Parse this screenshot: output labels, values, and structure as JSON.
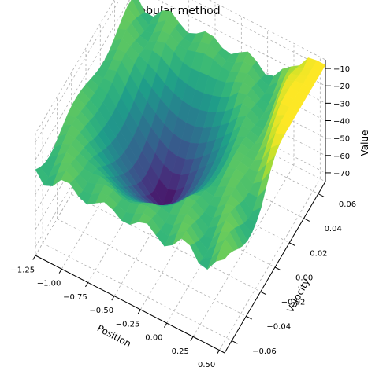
{
  "chart_data": {
    "type": "surface3d",
    "title": "Tabular method",
    "xlabel": "Position",
    "ylabel": "Velocity",
    "zlabel": "Value",
    "xlim": [
      -1.25,
      0.55
    ],
    "ylim": [
      -0.07,
      0.07
    ],
    "zlim": [
      -75,
      -5
    ],
    "x_ticks": [
      "−1.25",
      "−1.00",
      "−0.75",
      "−0.50",
      "−0.25",
      "0.00",
      "0.25",
      "0.50"
    ],
    "y_ticks": [
      "−0.06",
      "−0.04",
      "−0.02",
      "0.00",
      "0.02",
      "0.04",
      "0.06"
    ],
    "z_ticks": [
      "−70",
      "−60",
      "−50",
      "−40",
      "−30",
      "−20",
      "−10"
    ],
    "x_tick_values": [
      -1.25,
      -1.0,
      -0.75,
      -0.5,
      -0.25,
      0.0,
      0.25,
      0.5
    ],
    "y_tick_values": [
      -0.06,
      -0.04,
      -0.02,
      0.0,
      0.02,
      0.04,
      0.06
    ],
    "z_tick_values": [
      -70,
      -60,
      -50,
      -40,
      -30,
      -20,
      -10
    ],
    "colormap": "viridis",
    "grid": true,
    "surface_description_values": {
      "min_value": -73,
      "max_value": -8,
      "min_location": {
        "position": -0.5,
        "velocity": 0.0
      },
      "max_location": {
        "position": 0.5,
        "velocity": 0.07
      }
    }
  }
}
